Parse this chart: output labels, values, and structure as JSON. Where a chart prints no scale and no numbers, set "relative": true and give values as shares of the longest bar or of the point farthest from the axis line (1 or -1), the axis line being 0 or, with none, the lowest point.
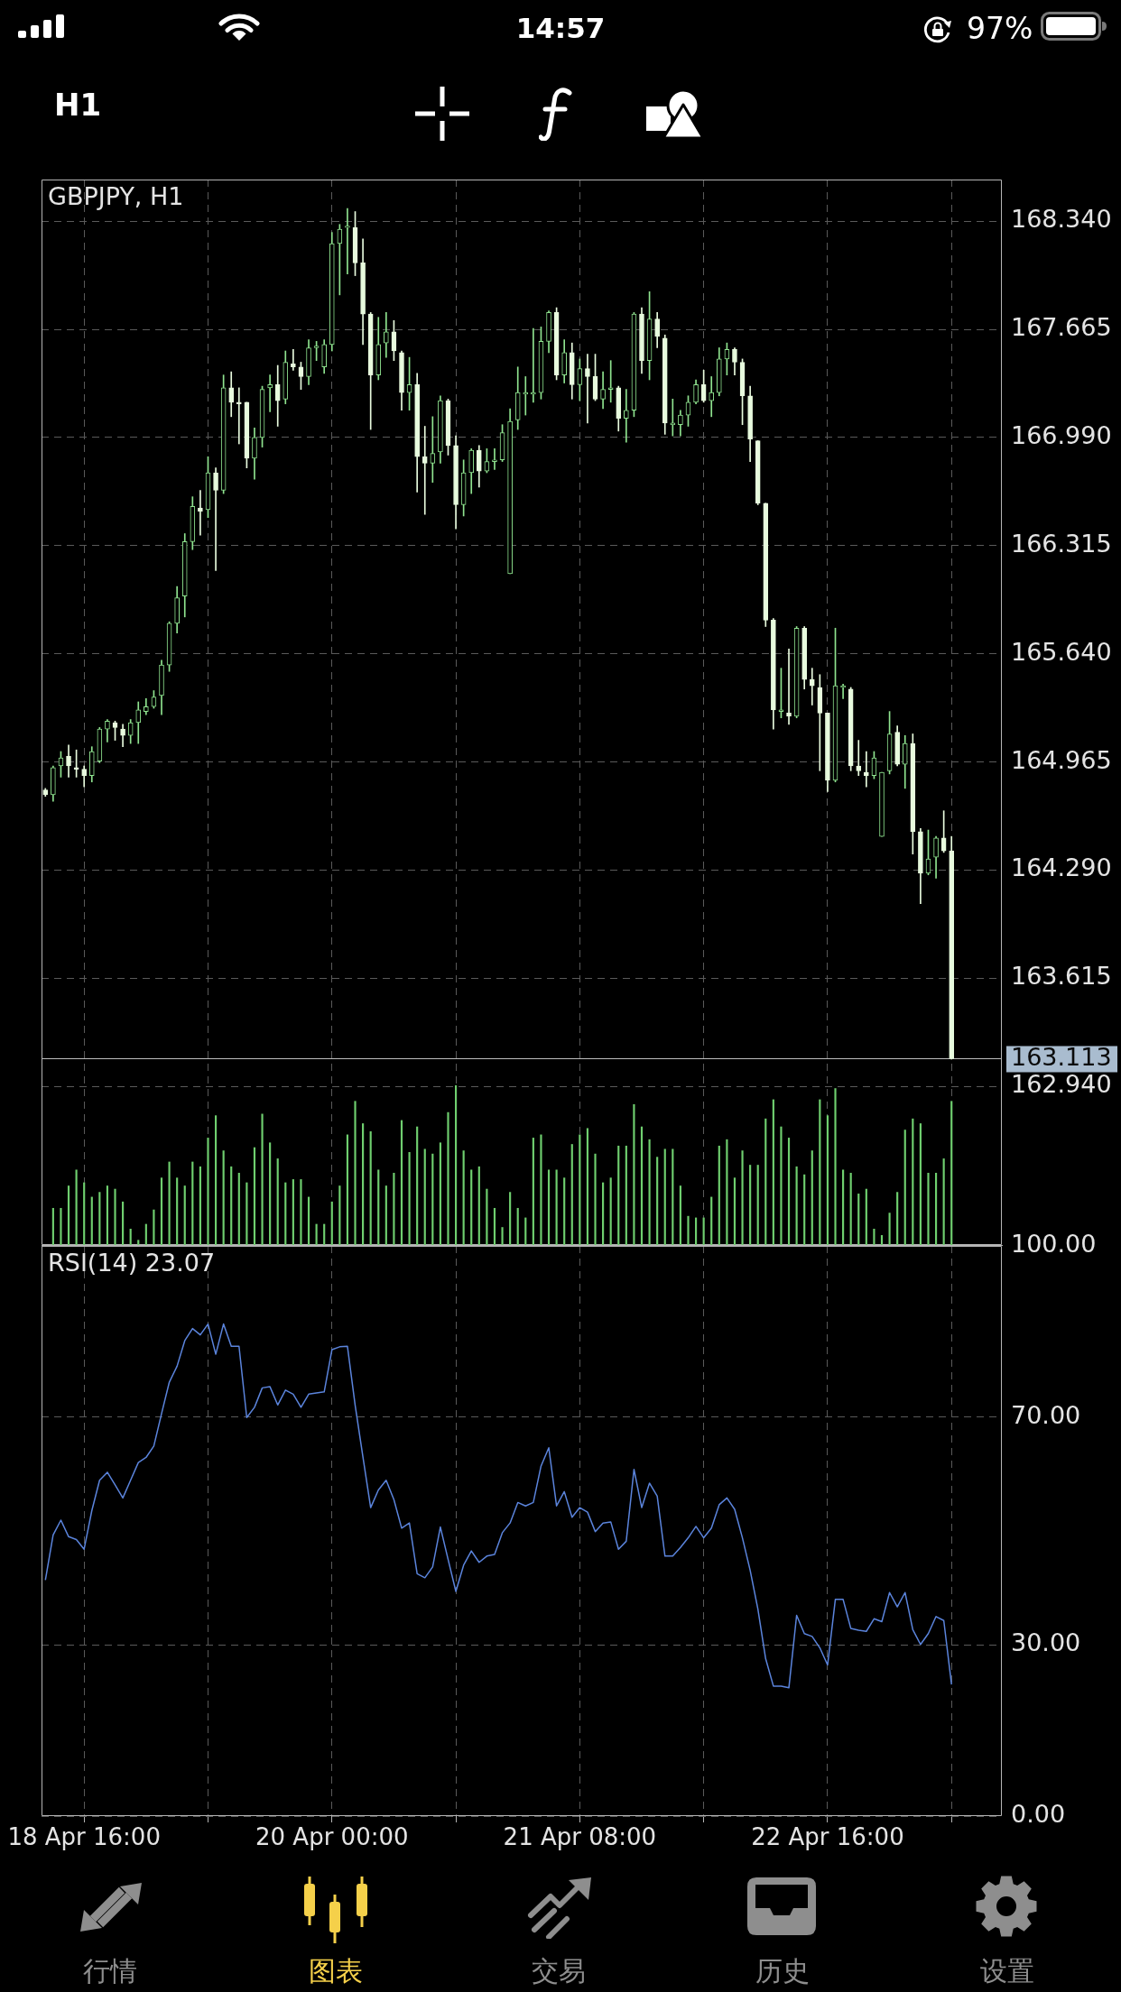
{
  "chart_data": [
    {
      "type": "other",
      "annotations": [
        "14:57",
        "97%",
        "H1"
      ]
    },
    {
      "type": "candlestick",
      "title": "GBPJPY, H1",
      "categories": [
        null,
        null,
        null,
        null,
        null,
        null,
        null,
        null,
        null,
        null,
        null,
        null,
        null,
        null,
        null,
        null,
        null,
        null,
        null,
        null,
        null,
        null,
        null,
        null,
        null,
        null,
        null,
        null,
        null,
        null,
        null,
        null,
        null,
        null,
        null,
        null,
        null,
        null,
        null,
        null,
        null,
        null,
        null,
        null,
        null,
        null,
        null,
        null,
        null,
        null,
        null,
        null,
        null,
        null,
        null,
        null,
        null,
        null,
        null,
        null,
        null,
        null,
        null,
        null,
        null,
        null,
        null,
        null,
        null,
        null,
        null,
        null,
        null,
        null,
        null,
        null,
        null,
        null,
        null,
        null,
        null,
        null,
        null,
        null,
        null,
        null,
        null,
        null,
        null,
        null,
        null,
        null,
        null,
        null,
        null,
        null,
        null,
        null,
        null,
        null,
        null,
        null,
        null,
        null,
        null,
        null,
        null,
        null,
        null,
        null,
        null,
        null,
        null,
        null,
        null,
        null,
        null,
        null,
        null,
        null,
        null,
        null,
        null,
        null
      ],
      "ohlc": [
        [
          164.79,
          164.8,
          164.75,
          164.76
        ],
        [
          164.76,
          164.94,
          164.72,
          164.93
        ],
        [
          164.94,
          165.03,
          164.87,
          164.99
        ],
        [
          165,
          165.07,
          164.87,
          164.94
        ],
        [
          164.93,
          165.04,
          164.87,
          164.92
        ],
        [
          164.92,
          164.94,
          164.81,
          164.88
        ],
        [
          164.88,
          165.06,
          164.84,
          165.03
        ],
        [
          164.97,
          165.18,
          164.96,
          165.17
        ],
        [
          165.17,
          165.23,
          165.09,
          165.22
        ],
        [
          165.21,
          165.22,
          165.1,
          165.18
        ],
        [
          165.17,
          165.2,
          165.06,
          165.13
        ],
        [
          165.13,
          165.23,
          165.08,
          165.21
        ],
        [
          165.21,
          165.34,
          165.08,
          165.29
        ],
        [
          165.28,
          165.36,
          165.26,
          165.31
        ],
        [
          165.31,
          165.41,
          165.3,
          165.37
        ],
        [
          165.38,
          165.6,
          165.26,
          165.57
        ],
        [
          165.57,
          165.84,
          165.53,
          165.83
        ],
        [
          165.83,
          166.06,
          165.77,
          165.99
        ],
        [
          166,
          166.39,
          165.87,
          166.34
        ],
        [
          166.34,
          166.62,
          166.29,
          166.56
        ],
        [
          166.55,
          166.66,
          166.38,
          166.53
        ],
        [
          166.54,
          166.87,
          166.49,
          166.77
        ],
        [
          166.77,
          166.8,
          166.16,
          166.66
        ],
        [
          166.66,
          167.38,
          166.64,
          167.3
        ],
        [
          167.3,
          167.4,
          167.12,
          167.21
        ],
        [
          167.21,
          167.3,
          166.95,
          167.2
        ],
        [
          167.21,
          167.21,
          166.8,
          166.86
        ],
        [
          166.86,
          167.05,
          166.73,
          166.99
        ],
        [
          166.99,
          167.31,
          166.93,
          167.29
        ],
        [
          167.3,
          167.38,
          167.15,
          167.32
        ],
        [
          167.32,
          167.44,
          167.06,
          167.22
        ],
        [
          167.23,
          167.53,
          167.2,
          167.46
        ],
        [
          167.45,
          167.54,
          167.41,
          167.43
        ],
        [
          167.43,
          167.46,
          167.29,
          167.37
        ],
        [
          167.37,
          167.6,
          167.32,
          167.55
        ],
        [
          167.55,
          167.59,
          167.47,
          167.56
        ],
        [
          167.43,
          167.6,
          167.39,
          167.57
        ],
        [
          167.57,
          168.27,
          167.53,
          168.2
        ],
        [
          168.2,
          168.32,
          167.88,
          168.29
        ],
        [
          168.3,
          168.42,
          168.01,
          168.31
        ],
        [
          168.3,
          168.4,
          168,
          168.08
        ],
        [
          168.08,
          168.23,
          167.57,
          167.76
        ],
        [
          167.76,
          167.77,
          167.04,
          167.38
        ],
        [
          167.38,
          167.74,
          167.35,
          167.57
        ],
        [
          167.58,
          167.77,
          167.49,
          167.65
        ],
        [
          167.65,
          167.72,
          167.47,
          167.53
        ],
        [
          167.52,
          167.53,
          167.16,
          167.27
        ],
        [
          167.27,
          167.49,
          167.16,
          167.32
        ],
        [
          167.32,
          167.39,
          166.65,
          166.87
        ],
        [
          166.87,
          167.06,
          166.51,
          166.83
        ],
        [
          166.83,
          167.12,
          166.71,
          166.89
        ],
        [
          166.9,
          167.25,
          166.83,
          167.22
        ],
        [
          167.22,
          167.23,
          166.88,
          166.94
        ],
        [
          166.94,
          167,
          166.42,
          166.57
        ],
        [
          166.57,
          166.85,
          166.5,
          166.77
        ],
        [
          166.77,
          166.92,
          166.64,
          166.91
        ],
        [
          166.91,
          166.94,
          166.68,
          166.78
        ],
        [
          166.78,
          166.92,
          166.77,
          166.84
        ],
        [
          166.84,
          166.92,
          166.79,
          166.85
        ],
        [
          166.85,
          167.07,
          166.84,
          167.02
        ],
        [
          166.14,
          167.17,
          166.14,
          167.09
        ],
        [
          167.1,
          167.43,
          167.04,
          167.27
        ],
        [
          167.26,
          167.37,
          167.13,
          167.27
        ],
        [
          167.26,
          167.67,
          167.21,
          167.27
        ],
        [
          167.27,
          167.68,
          167.23,
          167.59
        ],
        [
          167.59,
          167.78,
          167.52,
          167.77
        ],
        [
          167.77,
          167.8,
          167.35,
          167.38
        ],
        [
          167.38,
          167.6,
          167.33,
          167.52
        ],
        [
          167.52,
          167.58,
          167.23,
          167.32
        ],
        [
          167.32,
          167.48,
          167.22,
          167.42
        ],
        [
          167.42,
          167.51,
          167.08,
          167.37
        ],
        [
          167.37,
          167.51,
          167.22,
          167.23
        ],
        [
          167.23,
          167.4,
          167.17,
          167.29
        ],
        [
          167.29,
          167.47,
          167.21,
          167.3
        ],
        [
          167.3,
          167.31,
          167.03,
          167.11
        ],
        [
          167.11,
          167.29,
          166.96,
          167.16
        ],
        [
          167.16,
          167.77,
          167.12,
          167.76
        ],
        [
          167.76,
          167.8,
          167.39,
          167.47
        ],
        [
          167.47,
          167.9,
          167.35,
          167.73
        ],
        [
          167.73,
          167.77,
          167.55,
          167.62
        ],
        [
          167.61,
          167.63,
          167.01,
          167.08
        ],
        [
          167.07,
          167.23,
          167,
          167.08
        ],
        [
          167.07,
          167.16,
          167,
          167.13
        ],
        [
          167.13,
          167.25,
          167.06,
          167.21
        ],
        [
          167.21,
          167.35,
          167.2,
          167.32
        ],
        [
          167.32,
          167.41,
          167.21,
          167.22
        ],
        [
          167.22,
          167.37,
          167.12,
          167.27
        ],
        [
          167.27,
          167.55,
          167.25,
          167.48
        ],
        [
          167.48,
          167.58,
          167.38,
          167.54
        ],
        [
          167.54,
          167.55,
          167.38,
          167.46
        ],
        [
          167.46,
          167.48,
          167.07,
          167.25
        ],
        [
          167.25,
          167.31,
          166.84,
          166.98
        ],
        [
          166.97,
          166.97,
          166.57,
          166.58
        ],
        [
          166.58,
          166.58,
          165.81,
          165.85
        ],
        [
          165.85,
          165.86,
          165.17,
          165.29
        ],
        [
          165.28,
          165.55,
          165.24,
          165.29
        ],
        [
          165.27,
          165.67,
          165.2,
          165.25
        ],
        [
          165.25,
          165.81,
          165.24,
          165.8
        ],
        [
          165.8,
          165.81,
          165.42,
          165.48
        ],
        [
          165.48,
          165.55,
          165.32,
          165.44
        ],
        [
          165.43,
          165.51,
          164.91,
          165.27
        ],
        [
          165.27,
          165.27,
          164.78,
          164.85
        ],
        [
          164.85,
          165.8,
          164.84,
          165.44
        ],
        [
          165.43,
          165.45,
          165.36,
          165.44
        ],
        [
          165.42,
          165.43,
          164.91,
          164.94
        ],
        [
          164.94,
          165.1,
          164.88,
          164.91
        ],
        [
          164.9,
          165.03,
          164.81,
          164.88
        ],
        [
          164.88,
          165.03,
          164.86,
          164.99
        ],
        [
          164.5,
          164.9,
          164.5,
          164.9
        ],
        [
          164.91,
          165.28,
          164.89,
          165.14
        ],
        [
          165.15,
          165.19,
          164.94,
          164.95
        ],
        [
          164.95,
          165.13,
          164.8,
          165.08
        ],
        [
          165.08,
          165.14,
          164.39,
          164.53
        ],
        [
          164.53,
          164.55,
          164.08,
          164.27
        ],
        [
          164.27,
          164.54,
          164.26,
          164.36
        ],
        [
          164.37,
          164.5,
          164.24,
          164.49
        ],
        [
          164.49,
          164.66,
          164.4,
          164.41
        ],
        [
          164.41,
          164.5,
          163.11,
          163.113
        ],
        null,
        null,
        null,
        null,
        null,
        null
      ],
      "colors": [
        "#e8fbde",
        "#8fe38f",
        "#8fe38f",
        "#e8fbde",
        "#e8fbde",
        "#e8fbde",
        "#8fe38f",
        "#8fe38f",
        "#8fe38f",
        "#e8fbde",
        "#e8fbde",
        "#8fe38f",
        "#8fe38f",
        "#8fe38f",
        "#8fe38f",
        "#8fe38f",
        "#8fe38f",
        "#8fe38f",
        "#8fe38f",
        "#8fe38f",
        "#e8fbde",
        "#8fe38f",
        "#e8fbde",
        "#8fe38f",
        "#e8fbde",
        "#e8fbde",
        "#e8fbde",
        "#8fe38f",
        "#8fe38f",
        "#8fe38f",
        "#e8fbde",
        "#8fe38f",
        "#e8fbde",
        "#e8fbde",
        "#8fe38f",
        "#8fe38f",
        "#8fe38f",
        "#8fe38f",
        "#8fe38f",
        "#8fe38f",
        "#e8fbde",
        "#e8fbde",
        "#e8fbde",
        "#8fe38f",
        "#8fe38f",
        "#e8fbde",
        "#e8fbde",
        "#8fe38f",
        "#e8fbde",
        "#e8fbde",
        "#8fe38f",
        "#8fe38f",
        "#e8fbde",
        "#e8fbde",
        "#8fe38f",
        "#8fe38f",
        "#e8fbde",
        "#8fe38f",
        "#8fe38f",
        "#8fe38f",
        "#8fe38f",
        "#8fe38f",
        "#8fe38f",
        "#8fe38f",
        "#8fe38f",
        "#8fe38f",
        "#e8fbde",
        "#8fe38f",
        "#e8fbde",
        "#8fe38f",
        "#e8fbde",
        "#e8fbde",
        "#8fe38f",
        "#8fe38f",
        "#e8fbde",
        "#8fe38f",
        "#8fe38f",
        "#e8fbde",
        "#8fe38f",
        "#e8fbde",
        "#e8fbde",
        "#8fe38f",
        "#8fe38f",
        "#8fe38f",
        "#8fe38f",
        "#e8fbde",
        "#8fe38f",
        "#8fe38f",
        "#8fe38f",
        "#e8fbde",
        "#e8fbde",
        "#e8fbde",
        "#e8fbde",
        "#e8fbde",
        "#e8fbde",
        "#8fe38f",
        "#e8fbde",
        "#8fe38f",
        "#e8fbde",
        "#e8fbde",
        "#e8fbde",
        "#e8fbde",
        "#8fe38f",
        "#8fe38f",
        "#e8fbde",
        "#e8fbde",
        "#e8fbde",
        "#8fe38f",
        "#8fe38f",
        "#8fe38f",
        "#e8fbde",
        "#8fe38f",
        "#e8fbde",
        "#e8fbde",
        "#8fe38f",
        "#8fe38f",
        "#e8fbde",
        "#e8fbde",
        null,
        null,
        null,
        null,
        null,
        null
      ],
      "ylim": [
        161.95,
        168.6
      ],
      "yticks": [
        {
          "value": 168.34,
          "label": "168.340"
        },
        167.665,
        {
          "value": 166.99,
          "label": "166.990"
        },
        166.315,
        {
          "value": 165.64,
          "label": "165.640"
        },
        164.965,
        {
          "value": 164.29,
          "label": "164.290"
        },
        163.615,
        {
          "value": 162.94,
          "label": "162.940"
        }
      ],
      "grid": true,
      "tick_labels": "y",
      "ref_lines": [
        {
          "axis": "y",
          "value": 163.113,
          "label": "163.113",
          "color": "#bdbdbd"
        }
      ]
    },
    {
      "type": "bar",
      "relative": true,
      "categories": [
        null,
        null,
        null,
        null,
        null,
        null,
        null,
        null,
        null,
        null,
        null,
        null,
        null,
        null,
        null,
        null,
        null,
        null,
        null,
        null,
        null,
        null,
        null,
        null,
        null,
        null,
        null,
        null,
        null,
        null,
        null,
        null,
        null,
        null,
        null,
        null,
        null,
        null,
        null,
        null,
        null,
        null,
        null,
        null,
        null,
        null,
        null,
        null,
        null,
        null,
        null,
        null,
        null,
        null,
        null,
        null,
        null,
        null,
        null,
        null,
        null,
        null,
        null,
        null,
        null,
        null,
        null,
        null,
        null,
        null,
        null,
        null,
        null,
        null,
        null,
        null,
        null,
        null,
        null,
        null,
        null,
        null,
        null,
        null,
        null,
        null,
        null,
        null,
        null,
        null,
        null,
        null,
        null,
        null,
        null,
        null,
        null,
        null,
        null,
        null,
        null,
        null,
        null,
        null,
        null,
        null,
        null,
        null,
        null,
        null,
        null,
        null,
        null,
        null,
        null,
        null,
        null,
        null,
        null,
        null,
        null,
        null,
        null,
        null
      ],
      "values": [
        null,
        0.23,
        0.23,
        0.37,
        0.47,
        0.39,
        0.3,
        0.33,
        0.37,
        0.35,
        0.27,
        0.1,
        0.03,
        0.13,
        0.22,
        0.42,
        0.52,
        0.42,
        0.37,
        0.52,
        0.49,
        0.67,
        0.81,
        0.59,
        0.49,
        0.45,
        0.39,
        0.61,
        0.82,
        0.64,
        0.54,
        0.39,
        0.41,
        0.41,
        0.3,
        0.13,
        0.13,
        0.27,
        0.37,
        0.69,
        0.9,
        0.76,
        0.71,
        0.47,
        0.37,
        0.45,
        0.78,
        0.58,
        0.74,
        0.6,
        0.57,
        0.64,
        0.83,
        1,
        0.59,
        0.47,
        0.49,
        0.35,
        0.23,
        0.11,
        0.33,
        0.23,
        0.17,
        0.67,
        0.69,
        0.47,
        0.47,
        0.42,
        0.63,
        0.69,
        0.73,
        0.57,
        0.39,
        0.42,
        0.62,
        0.62,
        0.88,
        0.74,
        0.66,
        0.55,
        0.6,
        0.6,
        0.37,
        0.18,
        0.17,
        0.17,
        0.3,
        0.62,
        0.66,
        0.42,
        0.59,
        0.5,
        0.5,
        0.79,
        0.91,
        0.74,
        0.67,
        0.49,
        0.44,
        0.59,
        0.91,
        0.81,
        0.98,
        0.47,
        0.45,
        0.32,
        0.35,
        0.1,
        0.06,
        0.2,
        0.33,
        0.72,
        0.79,
        0.76,
        0.45,
        0.45,
        0.54,
        0.9,
        null,
        null,
        null,
        null,
        null,
        null
      ],
      "color": "#6fcf6f",
      "tick_labels": false
    },
    {
      "type": "line",
      "title": "RSI(14) 23.07",
      "categories": [
        null,
        null,
        null,
        null,
        null,
        "18 Apr 16:00",
        null,
        null,
        null,
        null,
        null,
        null,
        null,
        null,
        null,
        null,
        null,
        null,
        null,
        null,
        null,
        null,
        null,
        null,
        null,
        null,
        null,
        null,
        null,
        null,
        null,
        null,
        null,
        null,
        null,
        null,
        null,
        "20 Apr 00:00",
        null,
        null,
        null,
        null,
        null,
        null,
        null,
        null,
        null,
        null,
        null,
        null,
        null,
        null,
        null,
        null,
        null,
        null,
        null,
        null,
        null,
        null,
        null,
        null,
        null,
        null,
        null,
        null,
        null,
        null,
        null,
        "21 Apr 08:00",
        null,
        null,
        null,
        null,
        null,
        null,
        null,
        null,
        null,
        null,
        null,
        null,
        null,
        null,
        null,
        null,
        null,
        null,
        null,
        null,
        null,
        null,
        null,
        null,
        null,
        null,
        null,
        null,
        null,
        null,
        null,
        "22 Apr 16:00",
        null,
        null,
        null,
        null,
        null,
        null,
        null,
        null,
        null,
        null,
        null,
        null,
        null,
        null,
        null,
        null,
        null,
        null,
        null,
        null,
        null,
        null
      ],
      "values": [
        41.4,
        49.3,
        51.9,
        49,
        48.5,
        46.8,
        53.6,
        58.9,
        60.3,
        58.1,
        55.8,
        58.9,
        62,
        62.9,
        64.9,
        70.6,
        76.1,
        78.9,
        83.4,
        85.5,
        84.4,
        86.3,
        81,
        86.3,
        82.4,
        82.4,
        69.9,
        71.7,
        75.1,
        75.3,
        72.1,
        74.7,
        74,
        71.7,
        74,
        74.2,
        74.4,
        81.8,
        82.3,
        82.4,
        72,
        63,
        54.1,
        57.2,
        58.9,
        55.5,
        50.5,
        51.4,
        42.5,
        41.8,
        43.7,
        50.7,
        45,
        39.4,
        44,
        46.5,
        44.5,
        45.6,
        45.9,
        49.7,
        51.4,
        55,
        54.4,
        55,
        61.4,
        64.6,
        54.4,
        56.9,
        52.4,
        54.1,
        53.3,
        49.9,
        51.4,
        51.6,
        46.8,
        48.2,
        60.8,
        54.1,
        58.4,
        56.1,
        45.6,
        45.6,
        47.1,
        48.8,
        50.8,
        48.8,
        50.5,
        54.6,
        55.8,
        53.8,
        48.8,
        43.1,
        36.3,
        27.6,
        22.8,
        22.8,
        22.5,
        35.2,
        32,
        31.5,
        29.5,
        26.5,
        38,
        38,
        32.9,
        32.6,
        32.4,
        34.6,
        34.1,
        39.2,
        36.7,
        39.2,
        32.7,
        30.1,
        32,
        35,
        34.3,
        23.07,
        null,
        null,
        null,
        null,
        null,
        null
      ],
      "color": "#5b84dc",
      "ylim": [
        0,
        100
      ],
      "yticks": [
        {
          "value": 100,
          "label": "100.00"
        },
        {
          "value": 70,
          "label": "70.00"
        },
        {
          "value": 30,
          "label": "30.00"
        },
        {
          "value": 0,
          "label": "0.00"
        }
      ],
      "grid": true,
      "marker": "none"
    },
    {
      "type": "other",
      "annotations": [
        "行情",
        "图表",
        "交易",
        "历史",
        "设置"
      ],
      "colors": [
        "#8e8e8e",
        "#f5d04a",
        "#8e8e8e",
        "#8e8e8e",
        "#8e8e8e"
      ]
    }
  ]
}
